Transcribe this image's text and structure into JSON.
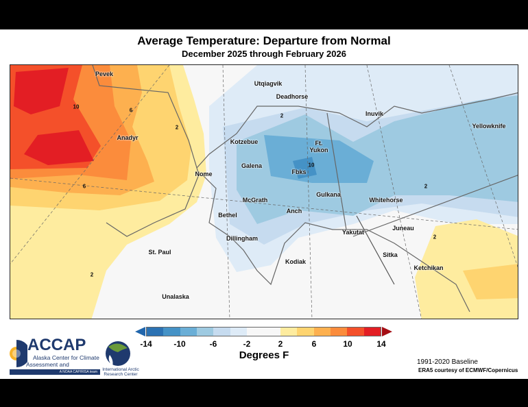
{
  "title": "Average Temperature: Departure from Normal",
  "subtitle": "December 2025 through February 2026",
  "colorbar": {
    "label": "Degrees F",
    "ticks": [
      "-14",
      "-10",
      "-6",
      "-2",
      "2",
      "6",
      "10",
      "14"
    ],
    "bins": [
      {
        "range": "-14 to -12",
        "color": "#2c72b3"
      },
      {
        "range": "-12 to -10",
        "color": "#4592c6"
      },
      {
        "range": "-10 to -8",
        "color": "#6aaed6"
      },
      {
        "range": "-8 to -6",
        "color": "#9ecae1"
      },
      {
        "range": "-6 to -4",
        "color": "#c6dbef"
      },
      {
        "range": "-4 to -2",
        "color": "#deebf7"
      },
      {
        "range": "-2 to 2",
        "color": "#f7f7f7"
      },
      {
        "range": "2 to 4",
        "color": "#feec9f"
      },
      {
        "range": "4 to 6",
        "color": "#fed470"
      },
      {
        "range": "6 to 8",
        "color": "#fdb04f"
      },
      {
        "range": "8 to 10",
        "color": "#fb8c3c"
      },
      {
        "range": "10 to 12",
        "color": "#f4502a"
      },
      {
        "range": "12 to 14",
        "color": "#e31e24"
      }
    ],
    "under_color": "#2166ac",
    "over_color": "#a50f15"
  },
  "map": {
    "cities": [
      "Pevek",
      "Utqiagvik",
      "Deadhorse",
      "Inuvik",
      "Anadyr",
      "Kotzebue",
      "Ft. Yukon",
      "Yellowknife",
      "Galena",
      "Nome",
      "Fbks",
      "Gulkana",
      "McGrath",
      "Whitehorse",
      "Anch",
      "Bethel",
      "Yakutat",
      "Juneau",
      "Dillingham",
      "St. Paul",
      "Kodiak",
      "Sitka",
      "Ketchikan",
      "Unalaska"
    ],
    "contour_labels": [
      "10",
      "6",
      "2",
      "6",
      "2",
      "10",
      "2",
      "2",
      "2"
    ]
  },
  "logos": {
    "accap": {
      "name": "ACCAP",
      "line1": "Alaska Center for Climate",
      "line2": "Assessment and Preparedness",
      "tag": "A NOAA CAP/RISA team"
    },
    "iarc": {
      "line1": "International Arctic",
      "line2": "Research Center"
    }
  },
  "footer": {
    "baseline": "1991-2020 Baseline",
    "credit": "ERA5 courtesy of ECMWF/Copernicus"
  }
}
